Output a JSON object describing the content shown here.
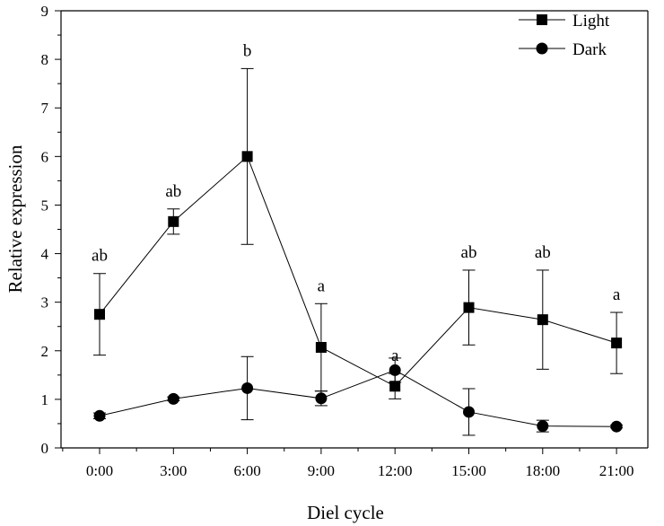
{
  "chart_data": {
    "type": "line",
    "title": "",
    "xlabel": "Diel cycle",
    "ylabel": "Relative expression",
    "categories": [
      "0:00",
      "3:00",
      "6:00",
      "9:00",
      "12:00",
      "15:00",
      "18:00",
      "21:00"
    ],
    "ylim": [
      0,
      9
    ],
    "yticks": [
      "0",
      "1",
      "2",
      "3",
      "4",
      "5",
      "6",
      "7",
      "8",
      "9"
    ],
    "grid": false,
    "legend_position": "top-right",
    "series": [
      {
        "name": "Light",
        "marker": "square",
        "values": [
          2.75,
          4.66,
          6.0,
          2.07,
          1.27,
          2.89,
          2.64,
          2.16
        ],
        "error": [
          0.84,
          0.26,
          1.81,
          0.9,
          0.26,
          0.77,
          1.02,
          0.63
        ]
      },
      {
        "name": "Dark",
        "marker": "circle",
        "values": [
          0.66,
          1.01,
          1.23,
          1.02,
          1.6,
          0.74,
          0.45,
          0.44
        ],
        "error": [
          0.06,
          0.04,
          0.65,
          0.15,
          0.25,
          0.48,
          0.12,
          0.03
        ]
      }
    ],
    "annotations": [
      "ab",
      "ab",
      "b",
      "a",
      "a",
      "ab",
      "ab",
      "a"
    ],
    "colors": {
      "line": "#000000",
      "marker": "#000000"
    }
  }
}
